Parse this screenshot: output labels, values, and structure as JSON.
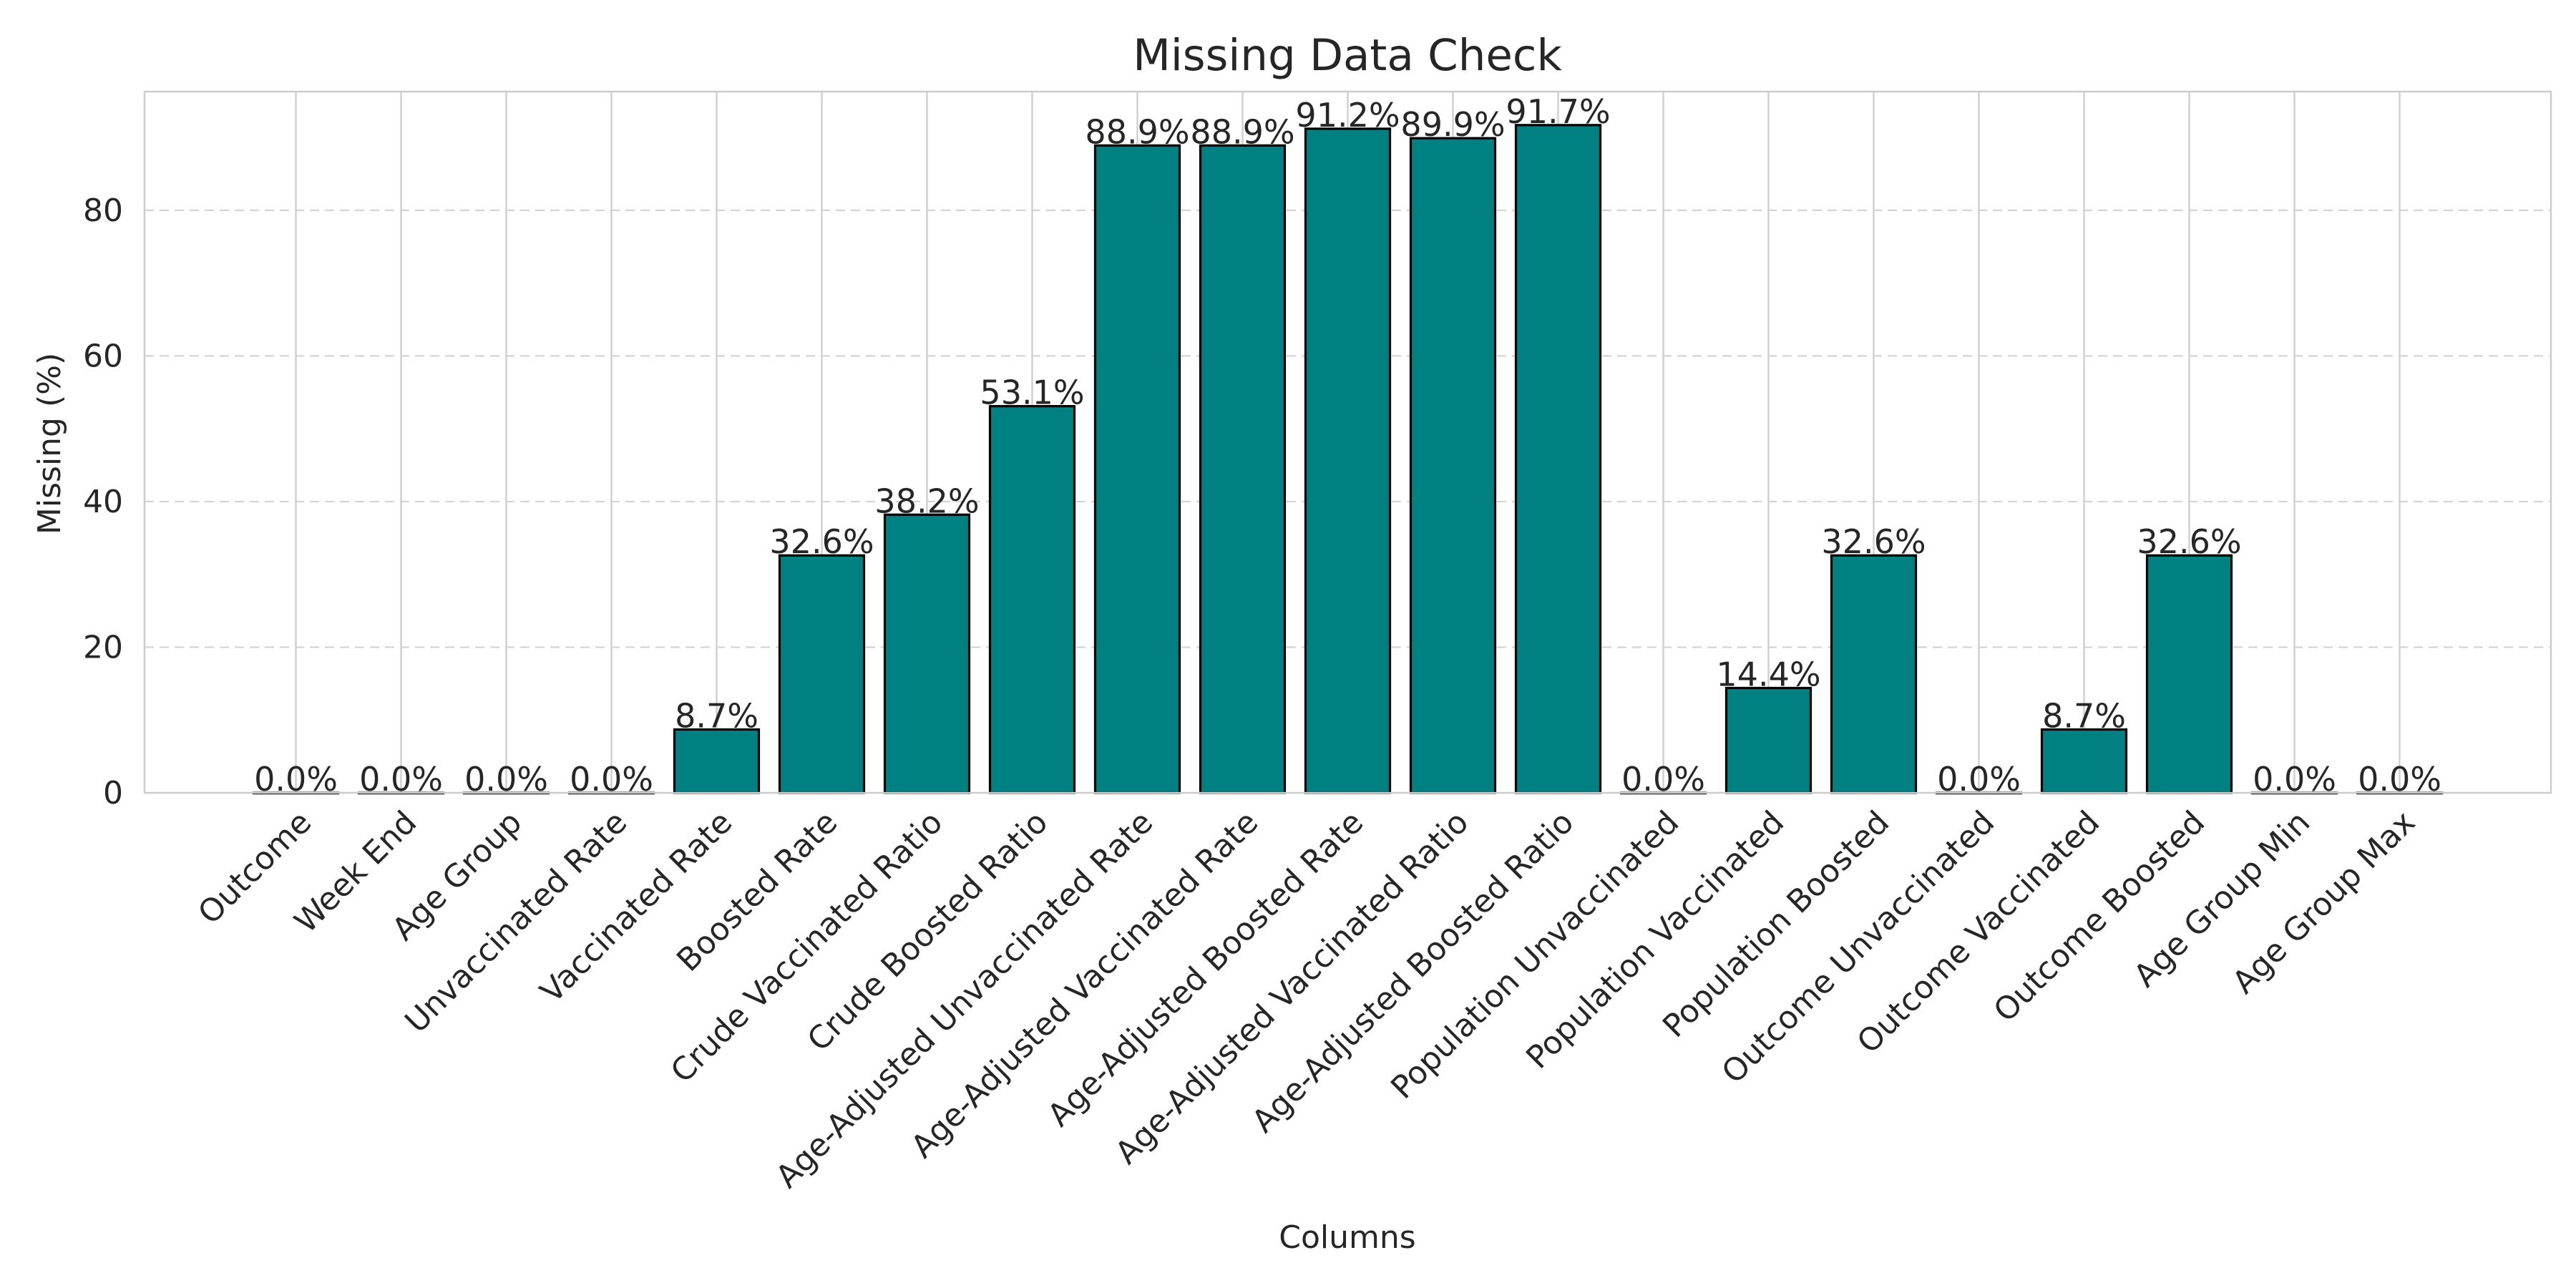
{
  "chart_data": {
    "type": "bar",
    "title": "Missing Data Check",
    "xlabel": "Columns",
    "ylabel": "Missing (%)",
    "ylim": [
      0,
      96.3
    ],
    "yticks": [
      0,
      20,
      40,
      60,
      80
    ],
    "grid": {
      "x": true,
      "y": true,
      "y_style": "dashed"
    },
    "bar_color": "#008080",
    "bar_edge_color": "#000000",
    "categories": [
      "Outcome",
      "Week End",
      "Age Group",
      "Unvaccinated Rate",
      "Vaccinated Rate",
      "Boosted Rate",
      "Crude Vaccinated Ratio",
      "Crude Boosted Ratio",
      "Age-Adjusted Unvaccinated Rate",
      "Age-Adjusted Vaccinated Rate",
      "Age-Adjusted Boosted Rate",
      "Age-Adjusted Vaccinated Ratio",
      "Age-Adjusted Boosted Ratio",
      "Population Unvaccinated",
      "Population Vaccinated",
      "Population Boosted",
      "Outcome Unvaccinated",
      "Outcome Vaccinated",
      "Outcome Boosted",
      "Age Group Min",
      "Age Group Max"
    ],
    "values": [
      0.0,
      0.0,
      0.0,
      0.0,
      8.7,
      32.6,
      38.2,
      53.1,
      88.9,
      88.9,
      91.2,
      89.9,
      91.7,
      0.0,
      14.4,
      32.6,
      0.0,
      8.7,
      32.6,
      0.0,
      0.0
    ],
    "data_labels": [
      "0.0%",
      "0.0%",
      "0.0%",
      "0.0%",
      "8.7%",
      "32.6%",
      "38.2%",
      "53.1%",
      "88.9%",
      "88.9%",
      "91.2%",
      "89.9%",
      "91.7%",
      "0.0%",
      "14.4%",
      "32.6%",
      "0.0%",
      "8.7%",
      "32.6%",
      "0.0%",
      "0.0%"
    ]
  }
}
